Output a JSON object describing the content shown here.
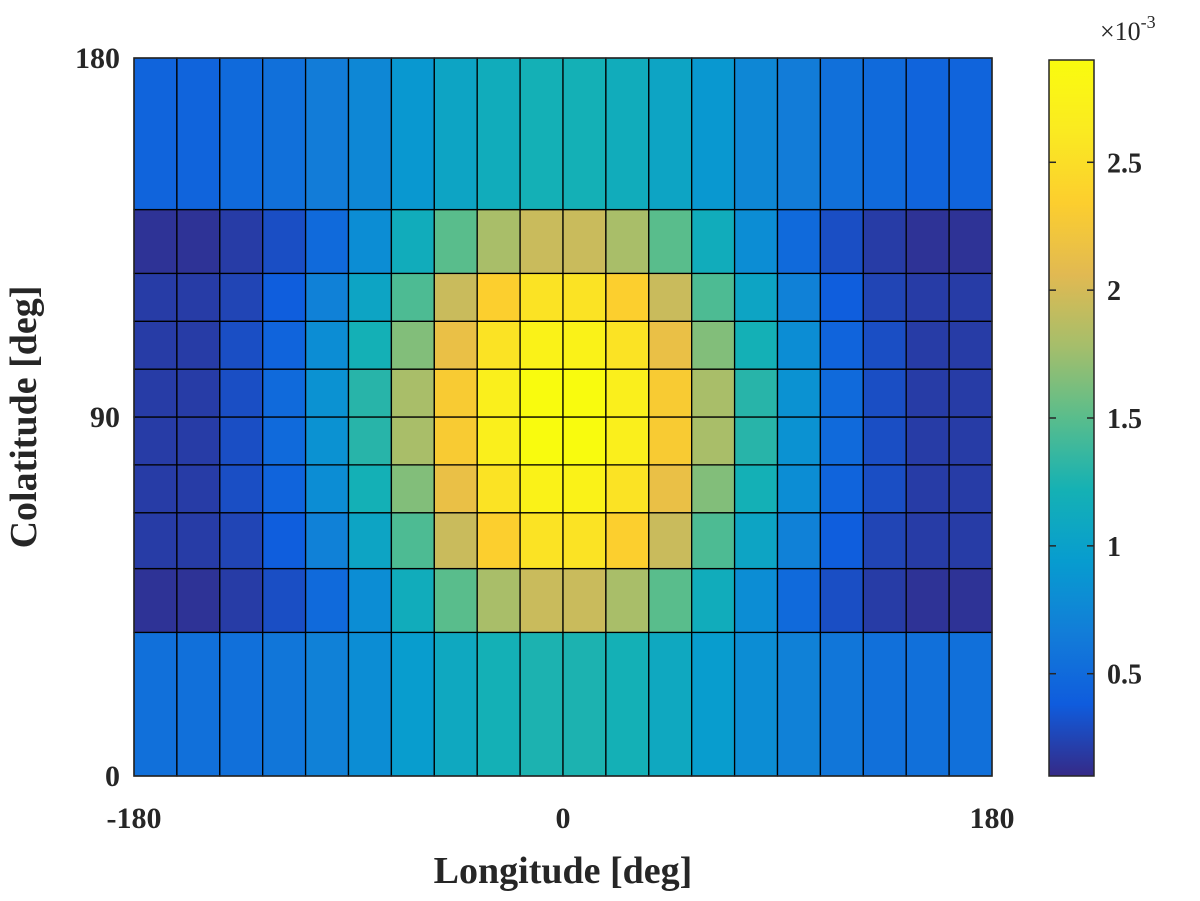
{
  "chart_data": {
    "type": "heatmap",
    "xlabel": "Longitude [deg]",
    "ylabel": "Colatitude [deg]",
    "xlim": [
      -180,
      180
    ],
    "ylim": [
      0,
      180
    ],
    "x_ticks": [
      "-180",
      "0",
      "180"
    ],
    "y_ticks": [
      "0",
      "90",
      "180"
    ],
    "x_edges": [
      -180,
      -162,
      -144,
      -126,
      -108,
      -90,
      -72,
      -54,
      -36,
      -18,
      0,
      18,
      36,
      54,
      72,
      90,
      108,
      126,
      144,
      162,
      180
    ],
    "y_edges": [
      0,
      36,
      52,
      66,
      78,
      90,
      102,
      114,
      126,
      142,
      180
    ],
    "values": [
      [
        0.55,
        0.55,
        0.55,
        0.6,
        0.7,
        0.8,
        0.95,
        1.1,
        1.2,
        1.25,
        1.25,
        1.2,
        1.1,
        0.95,
        0.8,
        0.7,
        0.6,
        0.55,
        0.55,
        0.55
      ],
      [
        0.15,
        0.15,
        0.2,
        0.3,
        0.5,
        0.8,
        1.15,
        1.5,
        1.8,
        1.95,
        1.95,
        1.8,
        1.5,
        1.15,
        0.8,
        0.5,
        0.3,
        0.2,
        0.15,
        0.15
      ],
      [
        0.2,
        0.2,
        0.25,
        0.4,
        0.7,
        1.05,
        1.45,
        1.95,
        2.35,
        2.55,
        2.55,
        2.35,
        1.95,
        1.45,
        1.05,
        0.7,
        0.4,
        0.25,
        0.2,
        0.2
      ],
      [
        0.2,
        0.2,
        0.3,
        0.45,
        0.8,
        1.2,
        1.65,
        2.15,
        2.55,
        2.75,
        2.75,
        2.55,
        2.15,
        1.65,
        1.2,
        0.8,
        0.45,
        0.3,
        0.2,
        0.2
      ],
      [
        0.2,
        0.2,
        0.3,
        0.5,
        0.85,
        1.3,
        1.8,
        2.3,
        2.7,
        2.9,
        2.9,
        2.7,
        2.3,
        1.8,
        1.3,
        0.85,
        0.5,
        0.3,
        0.2,
        0.2
      ],
      [
        0.2,
        0.2,
        0.3,
        0.5,
        0.85,
        1.3,
        1.8,
        2.3,
        2.7,
        2.9,
        2.9,
        2.7,
        2.3,
        1.8,
        1.3,
        0.85,
        0.5,
        0.3,
        0.2,
        0.2
      ],
      [
        0.2,
        0.2,
        0.3,
        0.45,
        0.8,
        1.2,
        1.65,
        2.15,
        2.55,
        2.75,
        2.75,
        2.55,
        2.15,
        1.65,
        1.2,
        0.8,
        0.45,
        0.3,
        0.2,
        0.2
      ],
      [
        0.2,
        0.2,
        0.25,
        0.4,
        0.7,
        1.05,
        1.45,
        1.95,
        2.35,
        2.55,
        2.55,
        2.35,
        1.95,
        1.45,
        1.05,
        0.7,
        0.4,
        0.25,
        0.2,
        0.2
      ],
      [
        0.15,
        0.15,
        0.2,
        0.3,
        0.5,
        0.8,
        1.15,
        1.5,
        1.8,
        1.95,
        1.95,
        1.8,
        1.5,
        1.15,
        0.8,
        0.5,
        0.3,
        0.2,
        0.15,
        0.15
      ],
      [
        0.45,
        0.45,
        0.5,
        0.55,
        0.65,
        0.75,
        0.9,
        1.05,
        1.15,
        1.2,
        1.2,
        1.15,
        1.05,
        0.9,
        0.75,
        0.65,
        0.55,
        0.5,
        0.45,
        0.45
      ]
    ],
    "colorbar": {
      "range": [
        0.1,
        2.9
      ],
      "ticks": [
        "0.5",
        "1",
        "1.5",
        "2",
        "2.5"
      ],
      "tick_values": [
        0.5,
        1,
        1.5,
        2,
        2.5
      ],
      "exponent_label": "×10",
      "exponent": "-3",
      "colormap": "parula"
    },
    "grid": false
  }
}
